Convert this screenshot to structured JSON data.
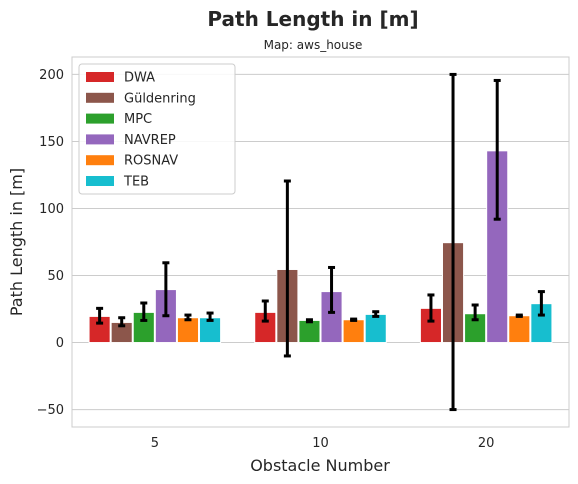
{
  "chart_data": {
    "type": "bar",
    "title": "Path Length in [m]",
    "subtitle": "Map: aws_house",
    "xlabel": "Obstacle Number",
    "ylabel": "Path Length in [m]",
    "categories": [
      "5",
      "10",
      "20"
    ],
    "ylim": [
      -63,
      213
    ],
    "yticks": [
      -50,
      0,
      50,
      100,
      150,
      200
    ],
    "ytick_labels": [
      "−50",
      "0",
      "50",
      "100",
      "150",
      "200"
    ],
    "grid": "horizontal",
    "legend_position": "top-left",
    "series": [
      {
        "name": "DWA",
        "color": "#d62728",
        "values": [
          19.5,
          22.5,
          25.5
        ],
        "err_low": [
          14.5,
          16.0,
          16.0
        ],
        "err_high": [
          25.5,
          31.0,
          35.5
        ]
      },
      {
        "name": "Güldenring",
        "color": "#8c564b",
        "values": [
          15.0,
          54.5,
          74.5
        ],
        "err_low": [
          12.5,
          -10.0,
          -50.0
        ],
        "err_high": [
          18.5,
          120.5,
          200.0
        ]
      },
      {
        "name": "MPC",
        "color": "#2ca02c",
        "values": [
          22.5,
          16.5,
          21.5
        ],
        "err_low": [
          16.5,
          15.5,
          17.0
        ],
        "err_high": [
          29.5,
          17.0,
          28.0
        ]
      },
      {
        "name": "NAVREP",
        "color": "#9467bd",
        "values": [
          39.5,
          38.0,
          143.0
        ],
        "err_low": [
          20.0,
          22.5,
          92.0
        ],
        "err_high": [
          59.5,
          56.0,
          195.5
        ]
      },
      {
        "name": "ROSNAV",
        "color": "#ff7f0e",
        "values": [
          18.5,
          17.0,
          20.0
        ],
        "err_low": [
          17.0,
          16.5,
          19.5
        ],
        "err_high": [
          20.5,
          17.5,
          20.5
        ]
      },
      {
        "name": "TEB",
        "color": "#17becf",
        "values": [
          18.5,
          21.0,
          29.0
        ],
        "err_low": [
          16.5,
          19.5,
          20.5
        ],
        "err_high": [
          22.0,
          23.0,
          38.0
        ]
      }
    ]
  }
}
